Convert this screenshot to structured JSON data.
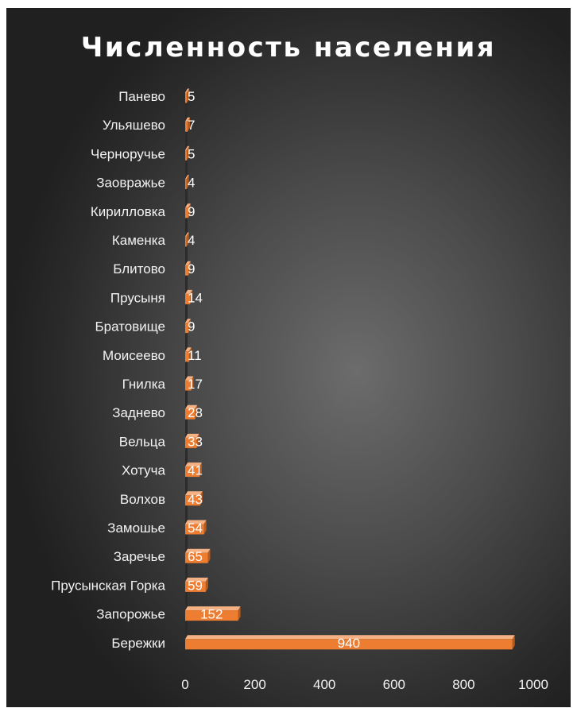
{
  "chart_data": {
    "type": "bar",
    "orientation": "horizontal",
    "title": "Численность населения",
    "categories": [
      "Панево",
      "Ульяшево",
      "Черноручье",
      "Заовражье",
      "Кирилловка",
      "Каменка",
      "Блитово",
      "Прусыня",
      "Братовище",
      "Моисеево",
      "Гнилка",
      "Заднево",
      "Вельца",
      "Хотуча",
      "Волхов",
      "Замошье",
      "Заречье",
      "Прусынская Горка",
      "Запорожье",
      "Бережки"
    ],
    "values": [
      5,
      7,
      5,
      4,
      9,
      4,
      9,
      14,
      9,
      11,
      17,
      28,
      33,
      41,
      43,
      54,
      65,
      59,
      152,
      940
    ],
    "xlim": [
      0,
      1000
    ],
    "x_ticks": [
      "0",
      "200",
      "400",
      "600",
      "800",
      "1000"
    ],
    "xlabel": "",
    "ylabel": "",
    "grid": false,
    "legend": "none",
    "data_labels": true,
    "colors": {
      "bar_front": "#ed7d31",
      "bar_top": "#f4b183",
      "bar_side": "#b85a1c",
      "text": "#f2f2f2"
    }
  }
}
